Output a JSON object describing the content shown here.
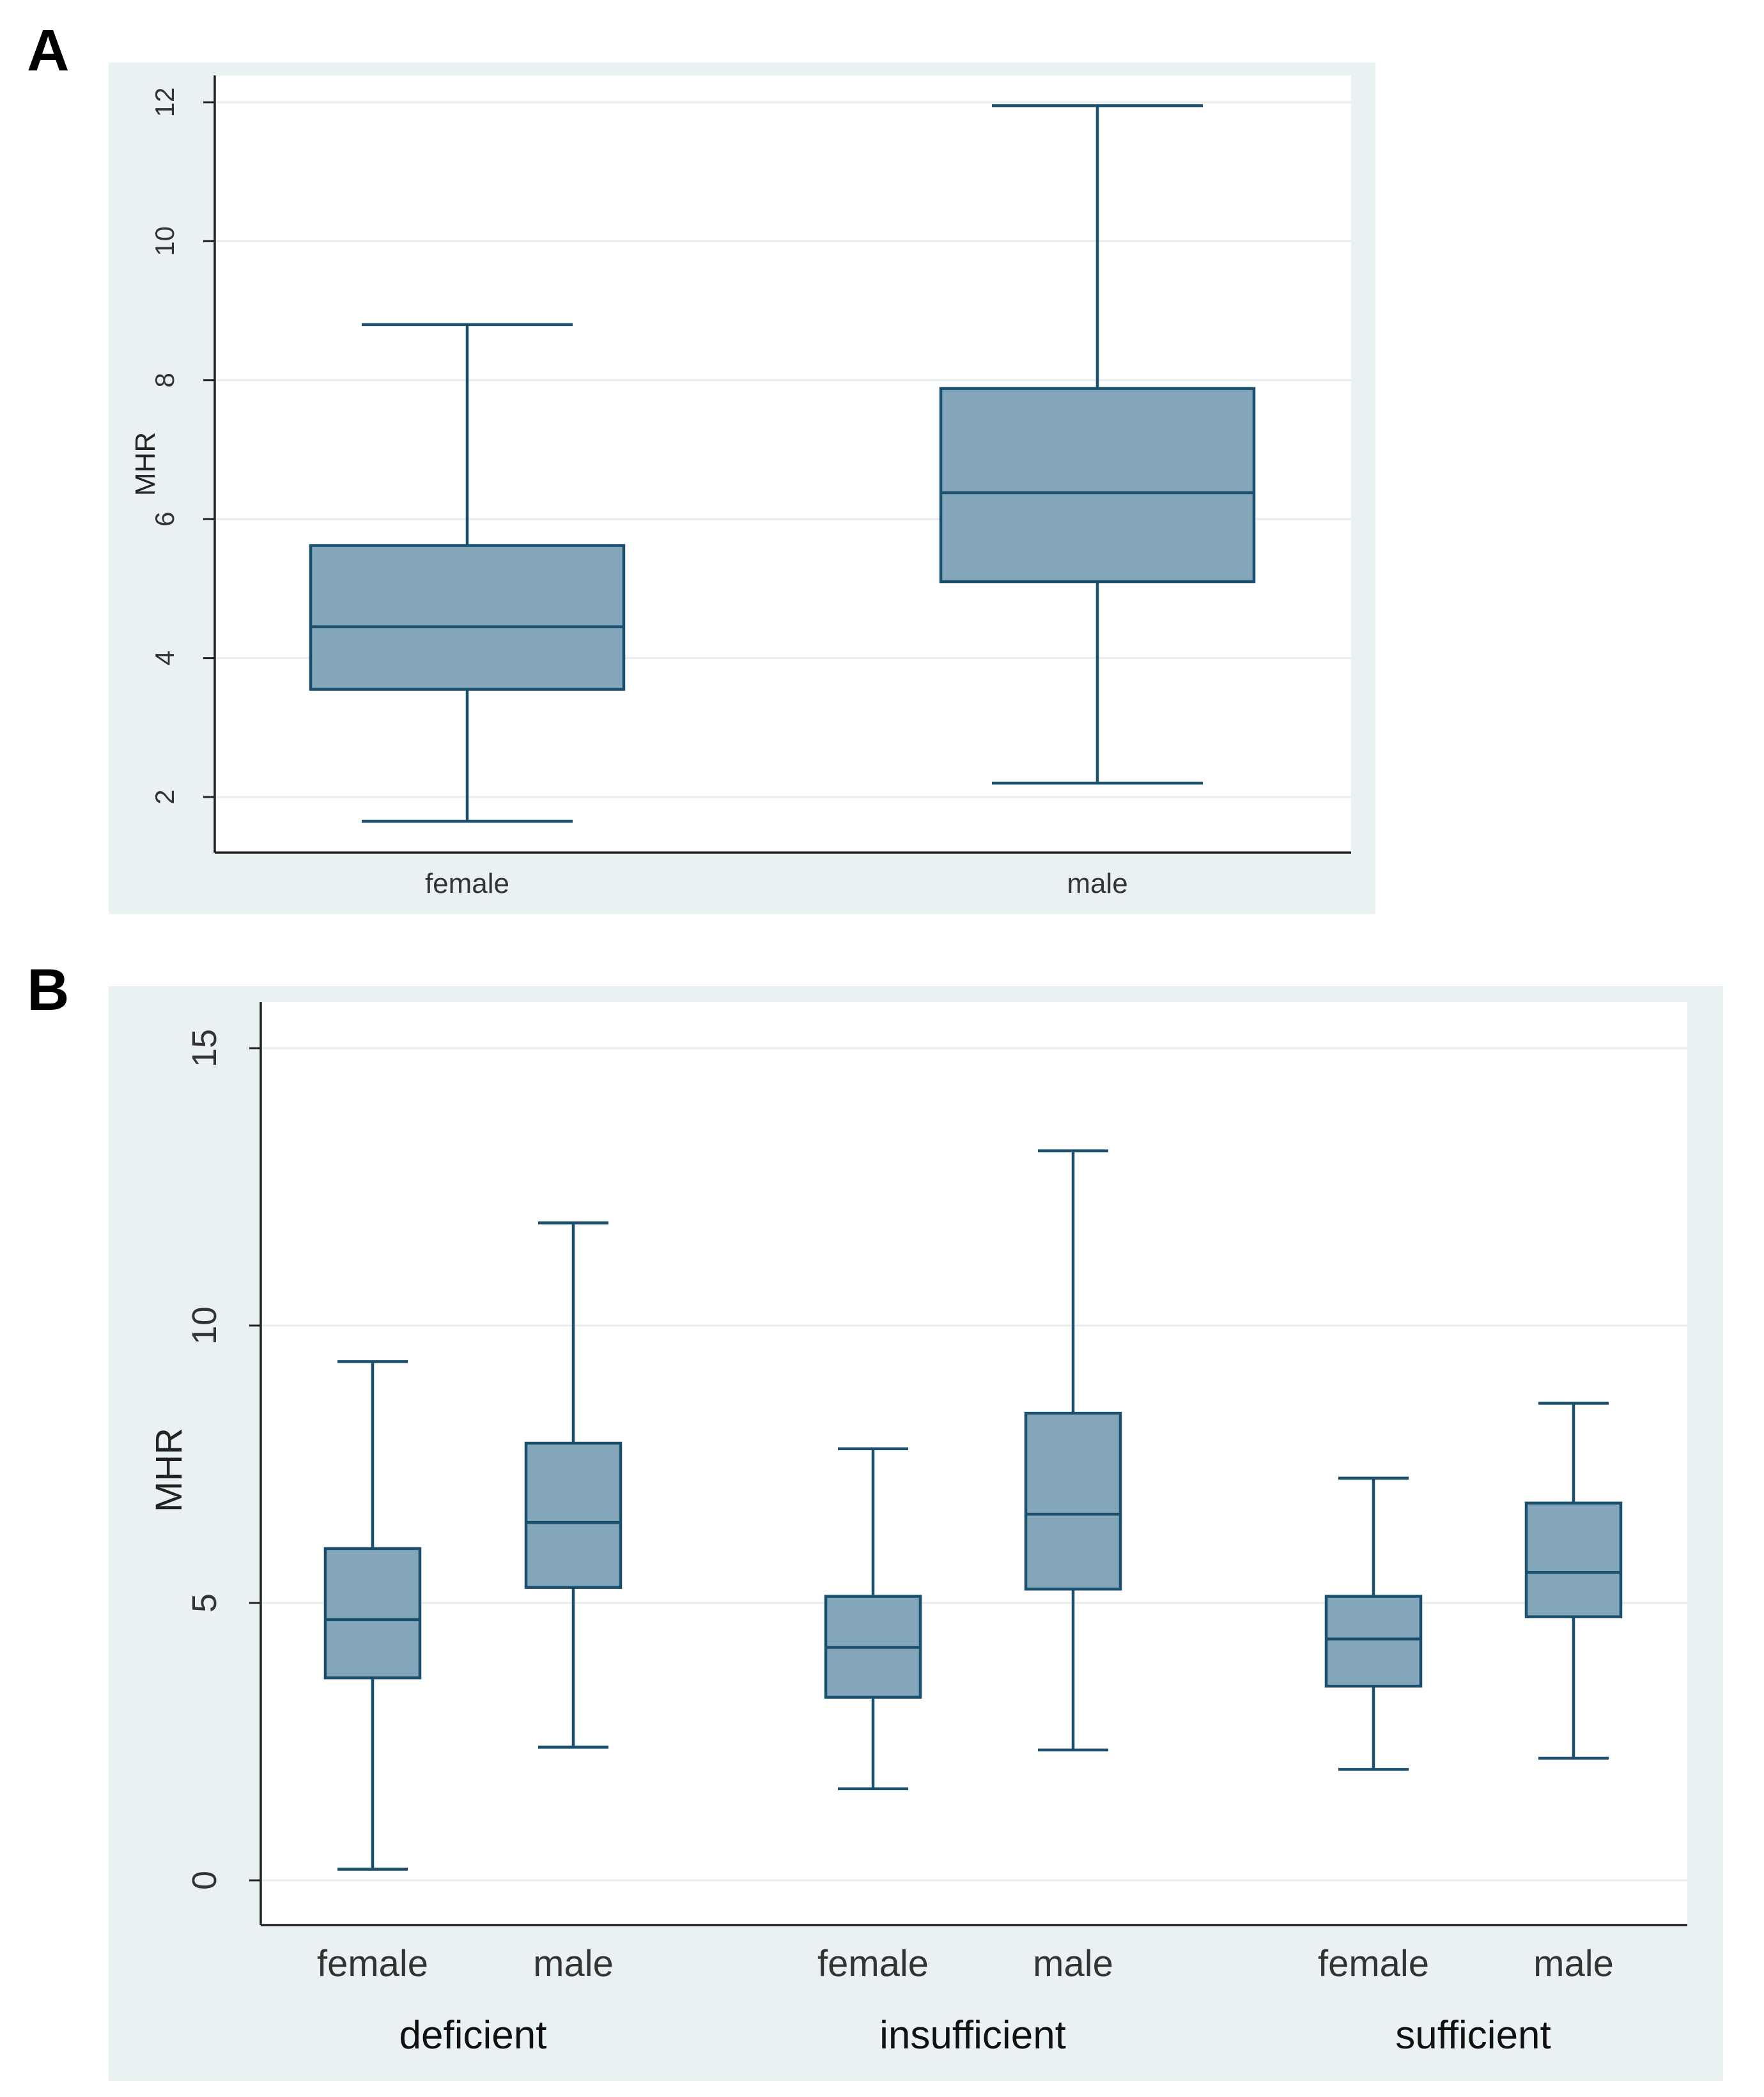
{
  "panels": [
    {
      "letter": "A"
    },
    {
      "letter": "B"
    }
  ],
  "colors": {
    "outer_bg": "#e9f1f3",
    "plot_bg": "#ffffff",
    "box_fill": "#83a6ba",
    "box_stroke": "#1a4f6e",
    "grid": "#e7eeef",
    "axis": "#222222"
  },
  "chart_data": [
    {
      "type": "box",
      "title": "",
      "ylabel": "MHR",
      "xlabel": "",
      "ylim": [
        1.2,
        12.5
      ],
      "yticks": [
        2,
        4,
        6,
        8,
        10,
        12
      ],
      "ytick_labels": [
        "2",
        "4",
        "6",
        "8",
        "10",
        "12"
      ],
      "grid": true,
      "categories": [
        "female",
        "male"
      ],
      "boxes": [
        {
          "label": "female",
          "min": 1.65,
          "q1": 3.55,
          "median": 4.45,
          "q3": 5.62,
          "max": 8.8
        },
        {
          "label": "male",
          "min": 2.2,
          "q1": 5.1,
          "median": 6.38,
          "q3": 7.88,
          "max": 11.95
        }
      ]
    },
    {
      "type": "box",
      "title": "",
      "ylabel": "MHR",
      "xlabel": "",
      "ylim": [
        -0.8,
        15.8
      ],
      "yticks": [
        0,
        5,
        10,
        15
      ],
      "ytick_labels": [
        "0",
        "5",
        "10",
        "15"
      ],
      "grid": true,
      "categories": [
        "female",
        "male",
        "female",
        "male",
        "female",
        "male"
      ],
      "groups": [
        "deficient",
        "insufficient",
        "sufficient"
      ],
      "boxes": [
        {
          "label": "female",
          "group": "deficient",
          "min": 0.2,
          "q1": 3.65,
          "median": 4.7,
          "q3": 5.98,
          "max": 9.35
        },
        {
          "label": "male",
          "group": "deficient",
          "min": 2.4,
          "q1": 5.28,
          "median": 6.45,
          "q3": 7.88,
          "max": 11.85
        },
        {
          "label": "female",
          "group": "insufficient",
          "min": 1.65,
          "q1": 3.3,
          "median": 4.2,
          "q3": 5.12,
          "max": 7.78
        },
        {
          "label": "male",
          "group": "insufficient",
          "min": 2.35,
          "q1": 5.25,
          "median": 6.6,
          "q3": 8.42,
          "max": 13.15
        },
        {
          "label": "female",
          "group": "sufficient",
          "min": 2.0,
          "q1": 3.5,
          "median": 4.35,
          "q3": 5.12,
          "max": 7.25
        },
        {
          "label": "male",
          "group": "sufficient",
          "min": 2.2,
          "q1": 4.75,
          "median": 5.55,
          "q3": 6.8,
          "max": 8.6
        }
      ]
    }
  ]
}
